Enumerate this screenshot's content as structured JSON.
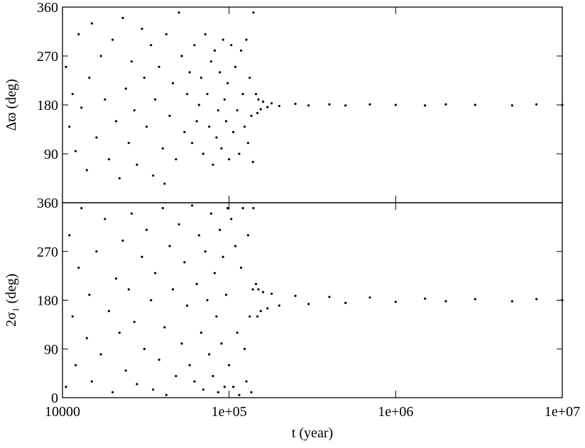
{
  "chart_data": [
    {
      "type": "scatter",
      "ylabel": "Δϖ (deg)",
      "color": "#000000",
      "xlim": [
        10000,
        10000000
      ],
      "xscale": "log",
      "ylim": [
        0,
        360
      ],
      "yticks": [
        90,
        180,
        270,
        360
      ],
      "x": [
        10500,
        11000,
        11500,
        12000,
        12500,
        13000,
        14000,
        14500,
        15000,
        16000,
        17000,
        18000,
        19000,
        20000,
        21000,
        22000,
        23000,
        24000,
        25000,
        26000,
        27000,
        28000,
        30000,
        31000,
        32000,
        34000,
        35000,
        36000,
        38000,
        40000,
        41000,
        42000,
        44000,
        46000,
        48000,
        50000,
        52000,
        54000,
        56000,
        58000,
        60000,
        62000,
        64000,
        66000,
        68000,
        70000,
        72000,
        74000,
        76000,
        78000,
        80000,
        82000,
        84000,
        86000,
        88000,
        90000,
        92000,
        94000,
        96000,
        98000,
        100000,
        103000,
        106000,
        109000,
        112000,
        115000,
        118000,
        121000,
        124000,
        127000,
        130000,
        133000,
        136000,
        139000,
        140000,
        145000,
        148000,
        150000,
        155000,
        160000,
        170000,
        180000,
        200000,
        250000,
        300000,
        400000,
        500000,
        700000,
        1000000,
        1500000,
        2000000,
        3000000,
        5000000,
        7000000,
        10000000
      ],
      "values": [
        250,
        140,
        200,
        95,
        310,
        175,
        60,
        230,
        330,
        120,
        270,
        190,
        80,
        300,
        150,
        45,
        340,
        210,
        110,
        260,
        170,
        70,
        320,
        230,
        140,
        290,
        50,
        190,
        250,
        100,
        35,
        310,
        160,
        220,
        80,
        350,
        270,
        130,
        200,
        240,
        110,
        290,
        150,
        180,
        230,
        90,
        310,
        200,
        140,
        260,
        70,
        280,
        120,
        170,
        240,
        100,
        300,
        190,
        150,
        220,
        80,
        290,
        130,
        250,
        170,
        90,
        280,
        200,
        140,
        300,
        110,
        230,
        160,
        75,
        350,
        200,
        165,
        190,
        172,
        186,
        176,
        183,
        178,
        182,
        179,
        181,
        179,
        181,
        180,
        179,
        181,
        180,
        179,
        181,
        180
      ]
    },
    {
      "type": "scatter",
      "ylabel": "2σ₁ (deg)",
      "xlabel": "t (year)",
      "color": "#000000",
      "xlim": [
        10000,
        10000000
      ],
      "xscale": "log",
      "ylim": [
        0,
        360
      ],
      "yticks": [
        0,
        90,
        180,
        270,
        360
      ],
      "xticks": [
        10000,
        {
          "value": 100000,
          "label": "1e+05"
        },
        {
          "value": 1000000,
          "label": "1e+06"
        },
        {
          "value": 10000000,
          "label": "1e+07"
        }
      ],
      "x": [
        10500,
        11000,
        11500,
        12000,
        12500,
        13000,
        14000,
        14500,
        15000,
        16000,
        17000,
        18000,
        19000,
        20000,
        21000,
        22000,
        23000,
        24000,
        25000,
        26000,
        27000,
        28000,
        30000,
        31000,
        32000,
        34000,
        35000,
        36000,
        38000,
        40000,
        41000,
        42000,
        44000,
        46000,
        48000,
        50000,
        52000,
        54000,
        56000,
        58000,
        60000,
        62000,
        64000,
        66000,
        68000,
        70000,
        72000,
        74000,
        76000,
        78000,
        80000,
        82000,
        84000,
        86000,
        88000,
        90000,
        92000,
        94000,
        96000,
        98000,
        100000,
        103000,
        106000,
        109000,
        112000,
        115000,
        118000,
        121000,
        124000,
        127000,
        130000,
        133000,
        136000,
        139000,
        140000,
        145000,
        148000,
        150000,
        155000,
        160000,
        170000,
        180000,
        200000,
        250000,
        300000,
        400000,
        500000,
        700000,
        1000000,
        1500000,
        2000000,
        3000000,
        5000000,
        7000000,
        10000000
      ],
      "values": [
        20,
        300,
        150,
        60,
        240,
        350,
        110,
        190,
        30,
        270,
        80,
        330,
        160,
        10,
        220,
        120,
        290,
        50,
        200,
        340,
        140,
        25,
        260,
        90,
        310,
        180,
        15,
        230,
        70,
        350,
        130,
        5,
        280,
        200,
        40,
        320,
        100,
        250,
        170,
        60,
        355,
        30,
        210,
        300,
        120,
        15,
        270,
        180,
        80,
        340,
        40,
        230,
        150,
        10,
        310,
        100,
        260,
        20,
        190,
        350,
        60,
        330,
        20,
        280,
        120,
        5,
        240,
        350,
        90,
        30,
        300,
        150,
        10,
        200,
        350,
        210,
        150,
        200,
        160,
        195,
        165,
        192,
        170,
        188,
        173,
        186,
        175,
        185,
        177,
        183,
        178,
        182,
        178,
        182,
        180
      ]
    }
  ]
}
